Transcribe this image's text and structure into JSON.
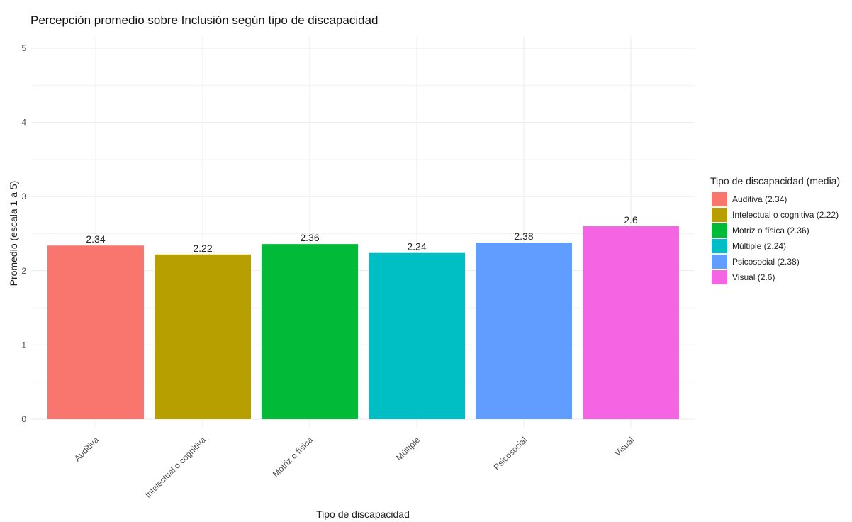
{
  "chart_data": {
    "type": "bar",
    "title": "Percepción promedio sobre Inclusión según tipo de discapacidad",
    "xlabel": "Tipo de discapacidad",
    "ylabel": "Promedio (escala 1 a 5)",
    "ylim": [
      0,
      5
    ],
    "yticks": [
      "0",
      "1",
      "2",
      "3",
      "4",
      "5"
    ],
    "grid": true,
    "categories": [
      "Auditiva",
      "Intelectual o cognitiva",
      "Motriz o física",
      "Múltiple",
      "Psicosocial",
      "Visual"
    ],
    "values": [
      2.34,
      2.22,
      2.36,
      2.24,
      2.38,
      2.6
    ],
    "data_labels": [
      "2.34",
      "2.22",
      "2.36",
      "2.24",
      "2.38",
      "2.6"
    ],
    "colors": [
      "#F8766D",
      "#B79F00",
      "#00BA38",
      "#00BFC4",
      "#619CFF",
      "#F564E3"
    ],
    "legend": {
      "title": "Tipo de discapacidad (media)",
      "placement": "right",
      "entries": [
        "Auditiva (2.34)",
        "Intelectual o cognitiva (2.22)",
        "Motriz o física (2.36)",
        "Múltiple (2.24)",
        "Psicosocial (2.38)",
        "Visual (2.6)"
      ]
    }
  }
}
